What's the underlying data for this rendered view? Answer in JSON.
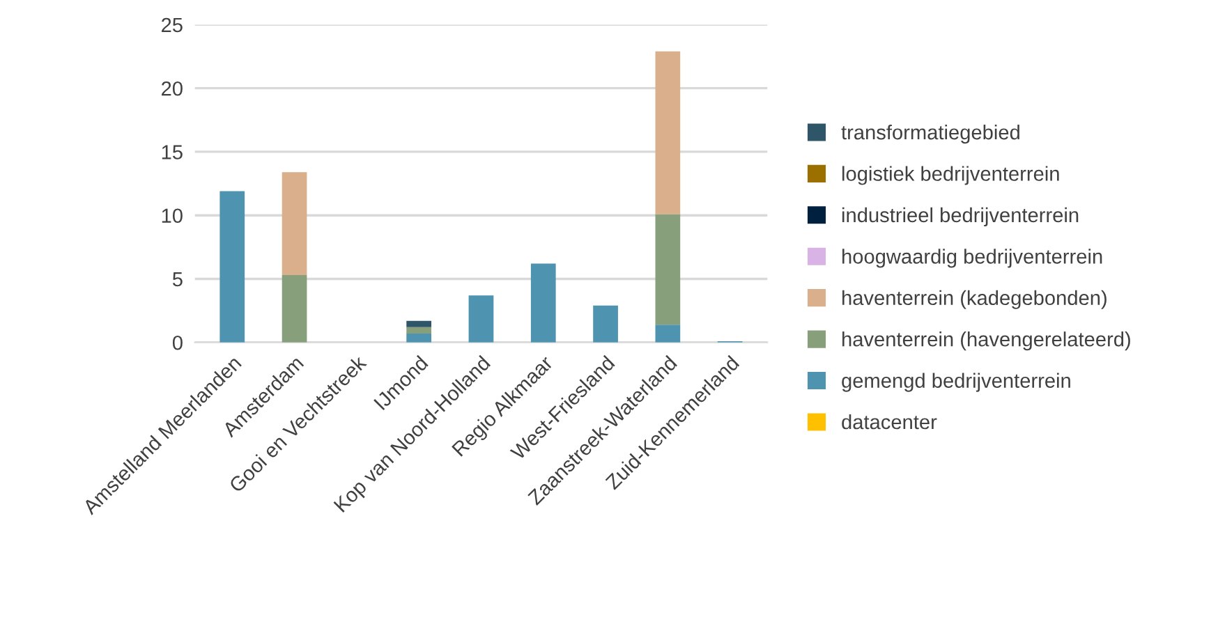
{
  "chart_data": {
    "type": "bar",
    "stacked": true,
    "categories": [
      "Amstelland Meerlanden",
      "Amsterdam",
      "Gooi en Vechtstreek",
      "IJmond",
      "Kop van Noord-Holland",
      "Regio Alkmaar",
      "West-Friesland",
      "Zaanstreek-Waterland",
      "Zuid-Kennemerland"
    ],
    "series": [
      {
        "name": "datacenter",
        "color": "#ffc000",
        "values": [
          null,
          null,
          null,
          null,
          null,
          null,
          null,
          null,
          null
        ]
      },
      {
        "name": "gemengd bedrijventerrein",
        "color": "#4e93b0",
        "values": [
          11.9,
          null,
          null,
          0.7,
          3.7,
          6.2,
          2.9,
          1.4,
          0.1
        ]
      },
      {
        "name": "haventerrein (havengerelateerd)",
        "color": "#889f7b",
        "values": [
          null,
          5.3,
          null,
          0.5,
          null,
          null,
          null,
          8.7,
          null
        ]
      },
      {
        "name": "haventerrein (kadegebonden)",
        "color": "#d9b08b",
        "values": [
          null,
          8.1,
          null,
          null,
          null,
          null,
          null,
          12.8,
          null
        ]
      },
      {
        "name": "hoogwaardig bedrijventerrein",
        "color": "#d9b3e6",
        "values": [
          null,
          null,
          null,
          null,
          null,
          null,
          null,
          null,
          null
        ]
      },
      {
        "name": "industrieel bedrijventerrein",
        "color": "#002040",
        "values": [
          null,
          null,
          null,
          null,
          null,
          null,
          null,
          null,
          null
        ]
      },
      {
        "name": "logistiek bedrijventerrein",
        "color": "#9c7000",
        "values": [
          null,
          null,
          null,
          null,
          null,
          null,
          null,
          null,
          null
        ]
      },
      {
        "name": "transformatiegebied",
        "color": "#2f5668",
        "values": [
          null,
          null,
          null,
          0.5,
          null,
          null,
          null,
          null,
          null
        ]
      }
    ],
    "ylim": [
      0,
      25
    ],
    "yticks": [
      0,
      5,
      10,
      15,
      20,
      25
    ],
    "grid": "y",
    "legend": "right"
  }
}
